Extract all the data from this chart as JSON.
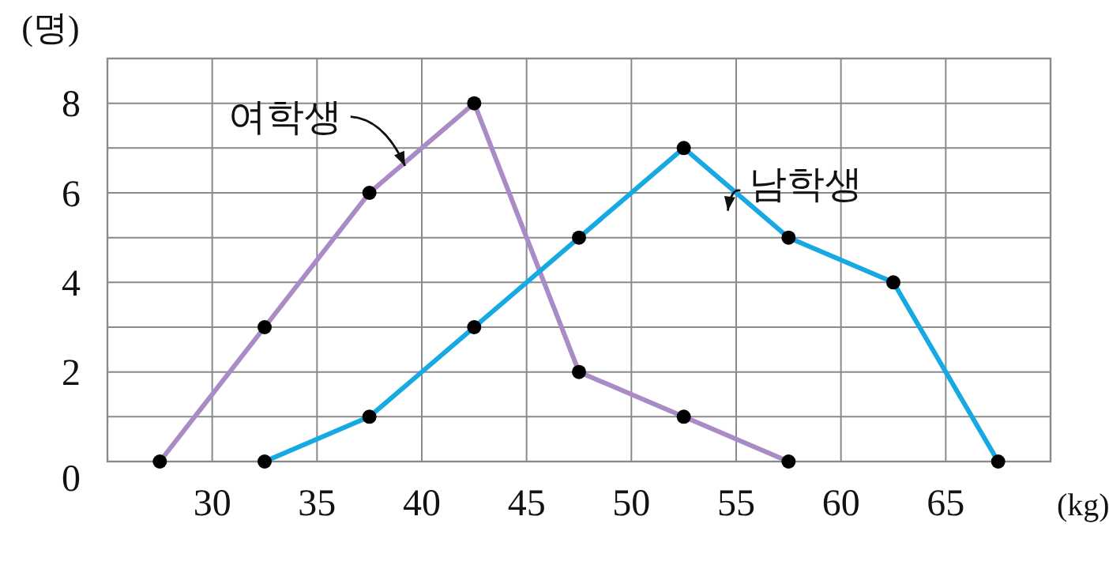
{
  "chart_data": {
    "type": "line",
    "xlabel": "(kg)",
    "ylabel": "(명)",
    "xlim": [
      25,
      70
    ],
    "xticks": [
      30,
      35,
      40,
      45,
      50,
      55,
      60,
      65
    ],
    "ylim": [
      0,
      9
    ],
    "yticks": [
      0,
      {
        "value": 1,
        "label": null
      },
      2,
      {
        "value": 3,
        "label": null
      },
      4,
      {
        "value": 5,
        "label": null
      },
      6,
      {
        "value": 7,
        "label": null
      },
      8,
      {
        "value": 9,
        "label": null
      }
    ],
    "grid": true,
    "marker": "circle",
    "series": [
      {
        "name": "여학생",
        "color": "#a98bc5",
        "x": [
          27.5,
          32.5,
          37.5,
          42.5,
          47.5,
          52.5,
          57.5
        ],
        "values": [
          0,
          3,
          6,
          8,
          2,
          1,
          0
        ]
      },
      {
        "name": "남학생",
        "color": "#17a9e1",
        "x": [
          32.5,
          37.5,
          42.5,
          47.5,
          52.5,
          57.5,
          62.5,
          67.5
        ],
        "values": [
          0,
          1,
          3,
          5,
          7,
          5,
          4,
          0
        ]
      }
    ]
  }
}
